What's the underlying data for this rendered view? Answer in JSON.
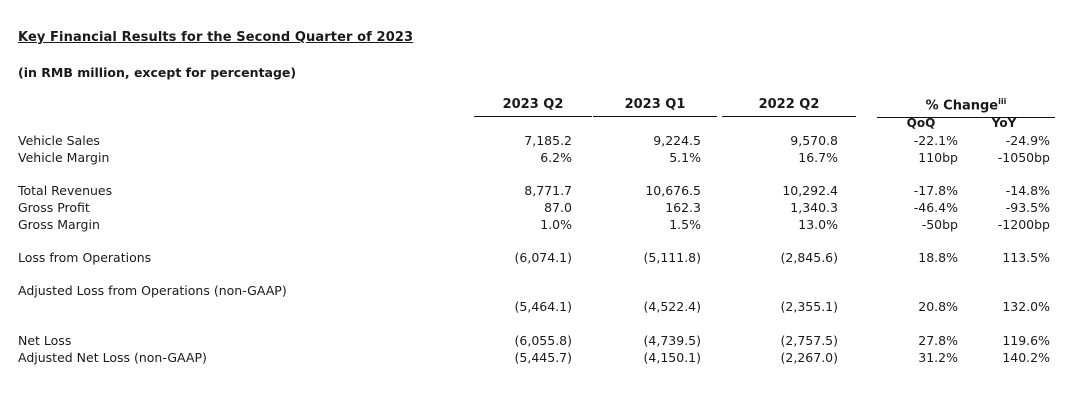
{
  "title": "Key Financial Results for the Second Quarter of 2023",
  "subtitle": "(in RMB million, except for percentage)",
  "columns": {
    "q2_2023": "2023 Q2",
    "q1_2023": "2023 Q1",
    "q2_2022": "2022 Q2",
    "change": "% Change",
    "change_note": "iii",
    "qoq": "QoQ",
    "yoy": "YoY"
  },
  "rows": [
    {
      "label": "Vehicle Sales",
      "q2_2023": "7,185.2",
      "q1_2023": "9,224.5",
      "q2_2022": "9,570.8",
      "qoq": "-22.1%",
      "yoy": "-24.9%"
    },
    {
      "label": "Vehicle Margin",
      "q2_2023": "6.2%",
      "q1_2023": "5.1%",
      "q2_2022": "16.7%",
      "qoq": "110bp",
      "yoy": "-1050bp"
    },
    {
      "label": "Total Revenues",
      "q2_2023": "8,771.7",
      "q1_2023": "10,676.5",
      "q2_2022": "10,292.4",
      "qoq": "-17.8%",
      "yoy": "-14.8%"
    },
    {
      "label": "Gross Profit",
      "q2_2023": "87.0",
      "q1_2023": "162.3",
      "q2_2022": "1,340.3",
      "qoq": "-46.4%",
      "yoy": "-93.5%"
    },
    {
      "label": "Gross Margin",
      "q2_2023": "1.0%",
      "q1_2023": "1.5%",
      "q2_2022": "13.0%",
      "qoq": "-50bp",
      "yoy": "-1200bp"
    },
    {
      "label": "Loss from Operations",
      "q2_2023": "(6,074.1)",
      "q1_2023": "(5,111.8)",
      "q2_2022": "(2,845.6)",
      "qoq": "18.8%",
      "yoy": "113.5%"
    },
    {
      "label": "Adjusted Loss from Operations (non-GAAP)",
      "q2_2023": "",
      "q1_2023": "",
      "q2_2022": "",
      "qoq": "",
      "yoy": ""
    },
    {
      "label": "",
      "q2_2023": "(5,464.1)",
      "q1_2023": "(4,522.4)",
      "q2_2022": "(2,355.1)",
      "qoq": "20.8%",
      "yoy": "132.0%"
    },
    {
      "label": "Net Loss",
      "q2_2023": "(6,055.8)",
      "q1_2023": "(4,739.5)",
      "q2_2022": "(2,757.5)",
      "qoq": "27.8%",
      "yoy": "119.6%"
    },
    {
      "label": "Adjusted Net Loss (non-GAAP)",
      "q2_2023": "(5,445.7)",
      "q1_2023": "(4,150.1)",
      "q2_2022": "(2,267.0)",
      "qoq": "31.2%",
      "yoy": "140.2%"
    }
  ]
}
